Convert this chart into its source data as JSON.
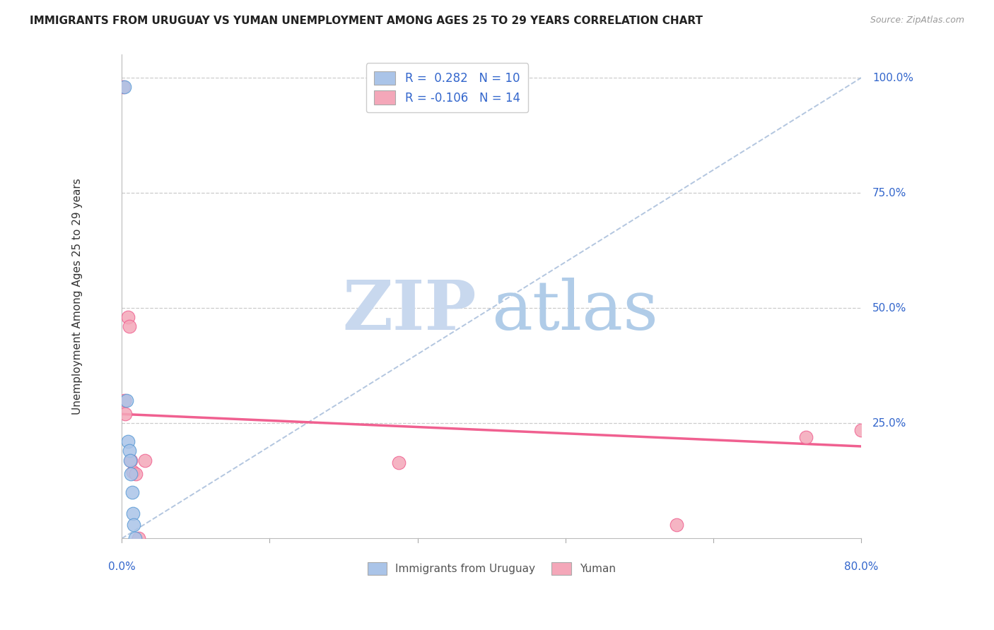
{
  "title": "IMMIGRANTS FROM URUGUAY VS YUMAN UNEMPLOYMENT AMONG AGES 25 TO 29 YEARS CORRELATION CHART",
  "source": "Source: ZipAtlas.com",
  "xlabel_bottom": [
    "0.0%",
    "80.0%"
  ],
  "ylabel": "Unemployment Among Ages 25 to 29 years",
  "ytick_labels": [
    "100.0%",
    "75.0%",
    "50.0%",
    "25.0%"
  ],
  "ytick_values": [
    1.0,
    0.75,
    0.5,
    0.25
  ],
  "xlim": [
    0.0,
    0.8
  ],
  "ylim": [
    0.0,
    1.05
  ],
  "legend_label1": "R =  0.282   N = 10",
  "legend_label2": "R = -0.106   N = 14",
  "legend_bottom_label1": "Immigrants from Uruguay",
  "legend_bottom_label2": "Yuman",
  "blue_color": "#aac4e8",
  "pink_color": "#f4a7b9",
  "blue_line_color": "#5b9bd5",
  "pink_line_color": "#f06090",
  "blue_dash_color": "#a0b8d8",
  "watermark_zip_color": "#c8d8ee",
  "watermark_atlas_color": "#b0cce8",
  "grid_color": "#cccccc",
  "title_color": "#222222",
  "axis_label_color": "#3366cc",
  "blue_scatter": [
    [
      0.003,
      0.98
    ],
    [
      0.005,
      0.3
    ],
    [
      0.007,
      0.21
    ],
    [
      0.008,
      0.19
    ],
    [
      0.009,
      0.17
    ],
    [
      0.01,
      0.14
    ],
    [
      0.011,
      0.1
    ],
    [
      0.012,
      0.055
    ],
    [
      0.013,
      0.03
    ],
    [
      0.014,
      0.0
    ]
  ],
  "pink_scatter": [
    [
      0.001,
      0.98
    ],
    [
      0.003,
      0.3
    ],
    [
      0.004,
      0.27
    ],
    [
      0.007,
      0.48
    ],
    [
      0.008,
      0.46
    ],
    [
      0.01,
      0.17
    ],
    [
      0.012,
      0.145
    ],
    [
      0.015,
      0.14
    ],
    [
      0.018,
      0.0
    ],
    [
      0.025,
      0.17
    ],
    [
      0.3,
      0.165
    ],
    [
      0.6,
      0.03
    ],
    [
      0.74,
      0.22
    ],
    [
      0.8,
      0.235
    ]
  ],
  "blue_trend_x": [
    0.0,
    0.8
  ],
  "blue_trend_y": [
    0.0,
    1.0
  ],
  "pink_trend_x": [
    0.0,
    0.8
  ],
  "pink_trend_y": [
    0.27,
    0.2
  ],
  "marker_size": 180
}
